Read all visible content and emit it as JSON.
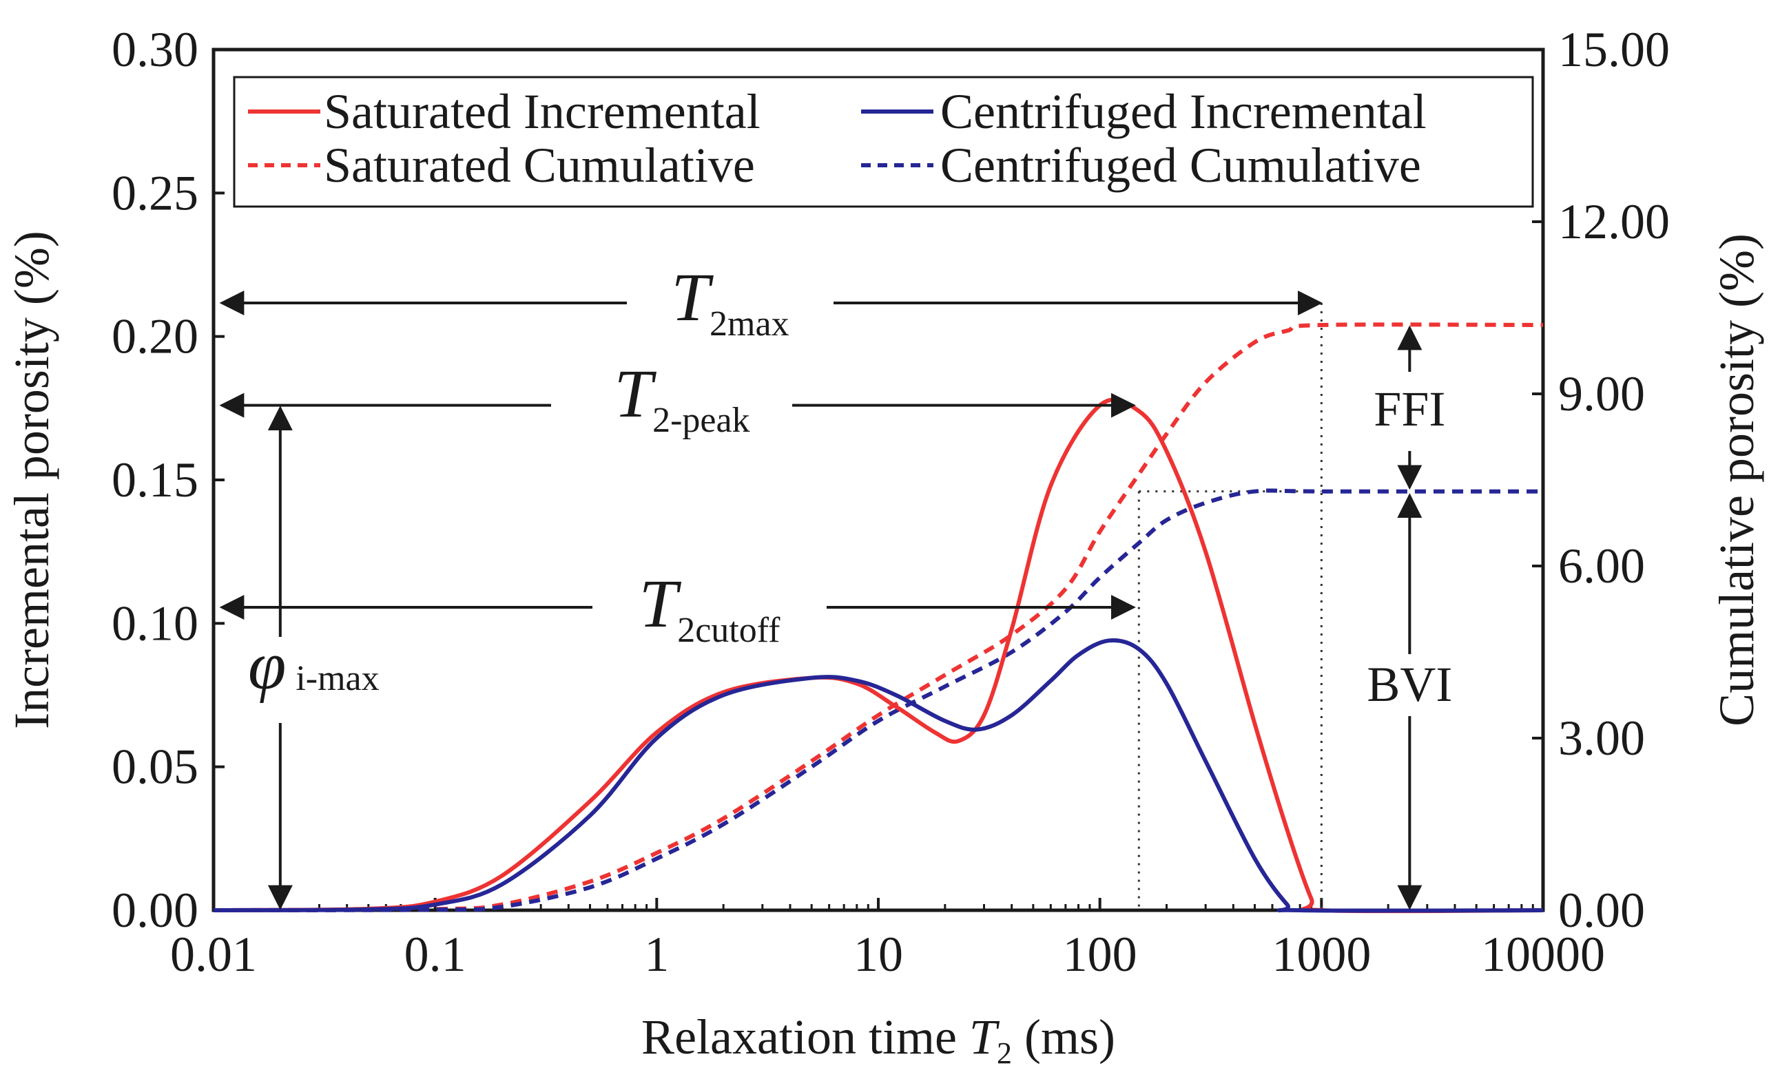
{
  "chart_data": {
    "type": "line",
    "title": "",
    "x_axis": {
      "label_prefix": "Relaxation time ",
      "label_var": "T",
      "label_sub": "2",
      "label_suffix": " (ms)",
      "scale": "log",
      "range": [
        0.01,
        10000
      ],
      "ticks": [
        "0.01",
        "0.1",
        "1",
        "10",
        "100",
        "1000",
        "10000"
      ]
    },
    "y_left": {
      "label": "Incremental porosity (%)",
      "range": [
        0,
        0.3
      ],
      "ticks": [
        "0.00",
        "0.05",
        "0.10",
        "0.15",
        "0.20",
        "0.25",
        "0.30"
      ]
    },
    "y_right": {
      "label": "Cumulative porosity (%)",
      "range": [
        0,
        15
      ],
      "ticks": [
        "0.00",
        "3.00",
        "6.00",
        "9.00",
        "12.00",
        "15.00"
      ]
    },
    "legend": {
      "placement": "top",
      "entries": [
        {
          "label": "Saturated Incremental",
          "color": "#ee3333",
          "style": "solid"
        },
        {
          "label": "Centrifuged Incremental",
          "color": "#262696",
          "style": "solid"
        },
        {
          "label": "Saturated Cumulative",
          "color": "#ee3333",
          "style": "dashed"
        },
        {
          "label": "Centrifuged Cumulative",
          "color": "#262696",
          "style": "dashed"
        }
      ]
    },
    "series": [
      {
        "name": "Saturated Incremental",
        "axis": "left",
        "color": "#ee3333",
        "style": "solid",
        "x": [
          0.01,
          0.05,
          0.1,
          0.2,
          0.5,
          1,
          2,
          5,
          8,
          12,
          18,
          23,
          30,
          40,
          60,
          100,
          150,
          200,
          300,
          500,
          700,
          900,
          1000,
          10000
        ],
        "y": [
          0.0,
          0.0005,
          0.003,
          0.012,
          0.038,
          0.062,
          0.076,
          0.081,
          0.079,
          0.071,
          0.062,
          0.059,
          0.068,
          0.098,
          0.148,
          0.176,
          0.174,
          0.16,
          0.125,
          0.065,
          0.028,
          0.004,
          0.0,
          0.0
        ]
      },
      {
        "name": "Centrifuged Incremental",
        "axis": "left",
        "color": "#262696",
        "style": "solid",
        "x": [
          0.01,
          0.05,
          0.1,
          0.2,
          0.5,
          1,
          2,
          5,
          8,
          12,
          20,
          28,
          40,
          60,
          80,
          110,
          150,
          200,
          300,
          500,
          700,
          800,
          10000
        ],
        "y": [
          0.0,
          0.0003,
          0.002,
          0.009,
          0.033,
          0.06,
          0.075,
          0.081,
          0.08,
          0.075,
          0.066,
          0.063,
          0.068,
          0.08,
          0.089,
          0.094,
          0.091,
          0.079,
          0.052,
          0.018,
          0.002,
          0.0,
          0.0
        ]
      },
      {
        "name": "Saturated Cumulative",
        "axis": "right",
        "color": "#ee3333",
        "style": "dashed",
        "x": [
          0.01,
          0.1,
          0.2,
          0.5,
          1,
          2,
          5,
          10,
          20,
          40,
          70,
          100,
          150,
          200,
          300,
          500,
          700,
          1000,
          10000
        ],
        "y": [
          0.0,
          0.02,
          0.1,
          0.5,
          1.0,
          1.6,
          2.6,
          3.4,
          4.1,
          4.8,
          5.6,
          6.6,
          7.6,
          8.3,
          9.2,
          9.9,
          10.1,
          10.2,
          10.2
        ]
      },
      {
        "name": "Centrifuged Cumulative",
        "axis": "right",
        "color": "#262696",
        "style": "dashed",
        "x": [
          0.01,
          0.1,
          0.2,
          0.5,
          1,
          2,
          5,
          10,
          20,
          40,
          70,
          100,
          150,
          200,
          300,
          500,
          1000,
          10000
        ],
        "y": [
          0.0,
          0.01,
          0.06,
          0.4,
          0.9,
          1.5,
          2.5,
          3.3,
          3.9,
          4.5,
          5.2,
          5.8,
          6.4,
          6.8,
          7.1,
          7.3,
          7.3,
          7.3
        ]
      }
    ],
    "annotations": {
      "t2max": {
        "var": "T",
        "sub": "2max",
        "x_end": 1000
      },
      "t2peak": {
        "var": "T",
        "sub": "2-peak",
        "x_end": 150
      },
      "t2cutoff": {
        "var": "T",
        "sub": "2cutoff",
        "x_end": 150
      },
      "phi": {
        "symbol": "φ",
        "sub": "i-max",
        "x": 0.02,
        "y": 0.176
      },
      "ffi": {
        "label": "FFI",
        "x": 2500,
        "y_from": 7.3,
        "y_to": 10.2
      },
      "bvi": {
        "label": "BVI",
        "x": 2500,
        "y_from": 0.0,
        "y_to": 7.3
      },
      "t2cutoff_value": 150,
      "t2max_value": 1000
    }
  }
}
